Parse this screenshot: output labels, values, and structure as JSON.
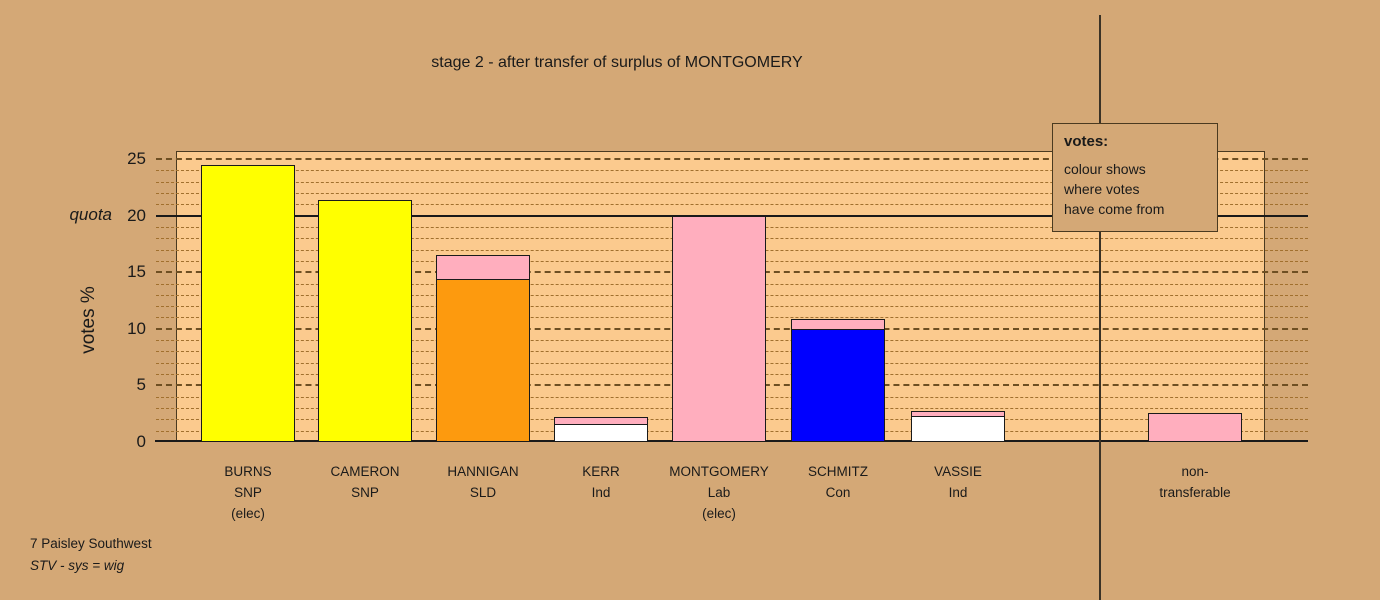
{
  "title": "stage 2 - after transfer of surplus of MONTGOMERY",
  "legend": {
    "heading": "votes:",
    "lines": [
      "colour shows",
      "where votes",
      "have come from"
    ]
  },
  "footer": {
    "constituency": "7 Paisley Southwest",
    "system": "STV - sys = wig"
  },
  "colors": {
    "page_background": "#D4A876",
    "plot_background": "#FBCA8E",
    "grid_minor": "#A1702E",
    "grid_major": "#6E4F22",
    "axis": "#1a1a1a",
    "snp_yellow": "#FFFF00",
    "sld_orange": "#FD9A0E",
    "lab_transfer_pink": "#FFAEBE",
    "con_blue": "#0000FF",
    "ind_white": "#FFFFFF"
  },
  "chart_data": {
    "type": "bar",
    "title": "stage 2 - after transfer of surplus of MONTGOMERY",
    "ylabel": "votes %",
    "ylim": [
      0,
      25.7
    ],
    "y_ticks": [
      0,
      5,
      10,
      15,
      20,
      25
    ],
    "quota": {
      "label": "quota",
      "value": 20
    },
    "grid": {
      "minor_step": 1,
      "major_step": 5,
      "quota_line": "solid"
    },
    "bars": [
      {
        "label_lines": [
          "BURNS",
          "SNP",
          "(elec)"
        ],
        "segments": [
          {
            "color": "#FFFF00",
            "value": 24.5
          }
        ]
      },
      {
        "label_lines": [
          "CAMERON",
          "SNP"
        ],
        "segments": [
          {
            "color": "#FFFF00",
            "value": 21.4
          }
        ]
      },
      {
        "label_lines": [
          "HANNIGAN",
          "SLD"
        ],
        "segments": [
          {
            "color": "#FD9A0E",
            "value": 14.4
          },
          {
            "color": "#FFAEBE",
            "value": 2.1
          }
        ]
      },
      {
        "label_lines": [
          "KERR",
          "Ind"
        ],
        "segments": [
          {
            "color": "#FFFFFF",
            "value": 1.6
          },
          {
            "color": "#FFAEBE",
            "value": 0.6
          }
        ]
      },
      {
        "label_lines": [
          "MONTGOMERY",
          "Lab",
          "(elec)"
        ],
        "segments": [
          {
            "color": "#FFAEBE",
            "value": 20.0
          }
        ]
      },
      {
        "label_lines": [
          "SCHMITZ",
          "Con"
        ],
        "segments": [
          {
            "color": "#0000FF",
            "value": 10.0
          },
          {
            "color": "#FFAEBE",
            "value": 0.9
          }
        ]
      },
      {
        "label_lines": [
          "VASSIE",
          "Ind"
        ],
        "segments": [
          {
            "color": "#FFFFFF",
            "value": 2.25
          },
          {
            "color": "#FFAEBE",
            "value": 0.45
          }
        ]
      },
      {
        "label_lines": [
          "non-",
          "transferable"
        ],
        "segments": [
          {
            "color": "#FFAEBE",
            "value": 2.6
          }
        ]
      }
    ]
  }
}
